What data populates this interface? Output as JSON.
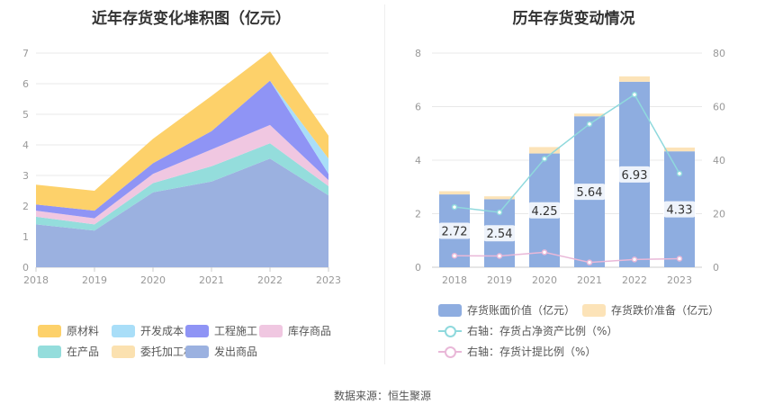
{
  "page": {
    "source": "数据来源：恒生聚源"
  },
  "chart_data": [
    {
      "type": "area",
      "title": "近年存货变化堆积图（亿元）",
      "x": [
        "2018",
        "2019",
        "2020",
        "2021",
        "2022",
        "2023"
      ],
      "ylim": [
        0,
        7
      ],
      "yticks": [
        "0",
        "1",
        "2",
        "3",
        "4",
        "5",
        "6",
        "7"
      ],
      "stacked": true,
      "legend_position": "bottom",
      "series": [
        {
          "name": "发出商品",
          "color": "#9bb1e0",
          "values": [
            1.4,
            1.2,
            2.45,
            2.8,
            3.55,
            2.35
          ]
        },
        {
          "name": "在产品",
          "color": "#94dddc",
          "values": [
            0.25,
            0.2,
            0.3,
            0.5,
            0.5,
            0.3
          ]
        },
        {
          "name": "委托加工材料",
          "color": "#fbe1b0",
          "values": [
            0.0,
            0.0,
            0.0,
            0.0,
            0.0,
            0.0
          ]
        },
        {
          "name": "库存商品",
          "color": "#f0c7e1",
          "values": [
            0.2,
            0.2,
            0.3,
            0.55,
            0.6,
            0.2
          ]
        },
        {
          "name": "工程施工",
          "color": "#8f94f5",
          "values": [
            0.2,
            0.25,
            0.35,
            0.6,
            1.45,
            0.2
          ]
        },
        {
          "name": "开发成本",
          "color": "#a9def8",
          "values": [
            0.0,
            0.0,
            0.0,
            0.0,
            0.0,
            0.5
          ]
        },
        {
          "name": "原材料",
          "color": "#fdd16a",
          "values": [
            0.65,
            0.65,
            0.8,
            1.15,
            0.95,
            0.75
          ]
        }
      ],
      "legend_order": [
        "原材料",
        "开发成本",
        "工程施工",
        "库存商品",
        "在产品",
        "委托加工材料",
        "发出商品"
      ]
    },
    {
      "type": "bar",
      "title": "历年存货变动情况",
      "categories": [
        "2018",
        "2019",
        "2020",
        "2021",
        "2022",
        "2023"
      ],
      "ylim": [
        0,
        8
      ],
      "yticks": [
        "0",
        "2",
        "4",
        "6",
        "8"
      ],
      "y2lim": [
        0,
        80
      ],
      "y2ticks": [
        "0",
        "20",
        "40",
        "60",
        "80"
      ],
      "stacked": true,
      "legend_position": "bottom",
      "series": [
        {
          "name": "存货账面价值（亿元）",
          "color": "#8eade0",
          "values": [
            2.72,
            2.54,
            4.25,
            5.64,
            6.93,
            4.33
          ],
          "labels": [
            "2.72",
            "2.54",
            "4.25",
            "5.64",
            "6.93",
            "4.33"
          ]
        },
        {
          "name": "存货跌价准备（亿元）",
          "color": "#fce3b8",
          "values": [
            0.12,
            0.11,
            0.24,
            0.1,
            0.2,
            0.14
          ]
        }
      ],
      "lines": [
        {
          "name": "右轴：存货占净资产比例（%）",
          "color": "#8fd9dd",
          "axis": "right",
          "values": [
            22.5,
            20.5,
            40.5,
            53.5,
            64.5,
            35.0
          ]
        },
        {
          "name": "右轴：存货计提比例（%）",
          "color": "#e9b8d8",
          "axis": "right",
          "values": [
            4.3,
            4.2,
            5.6,
            1.8,
            2.9,
            3.2
          ]
        }
      ]
    }
  ]
}
